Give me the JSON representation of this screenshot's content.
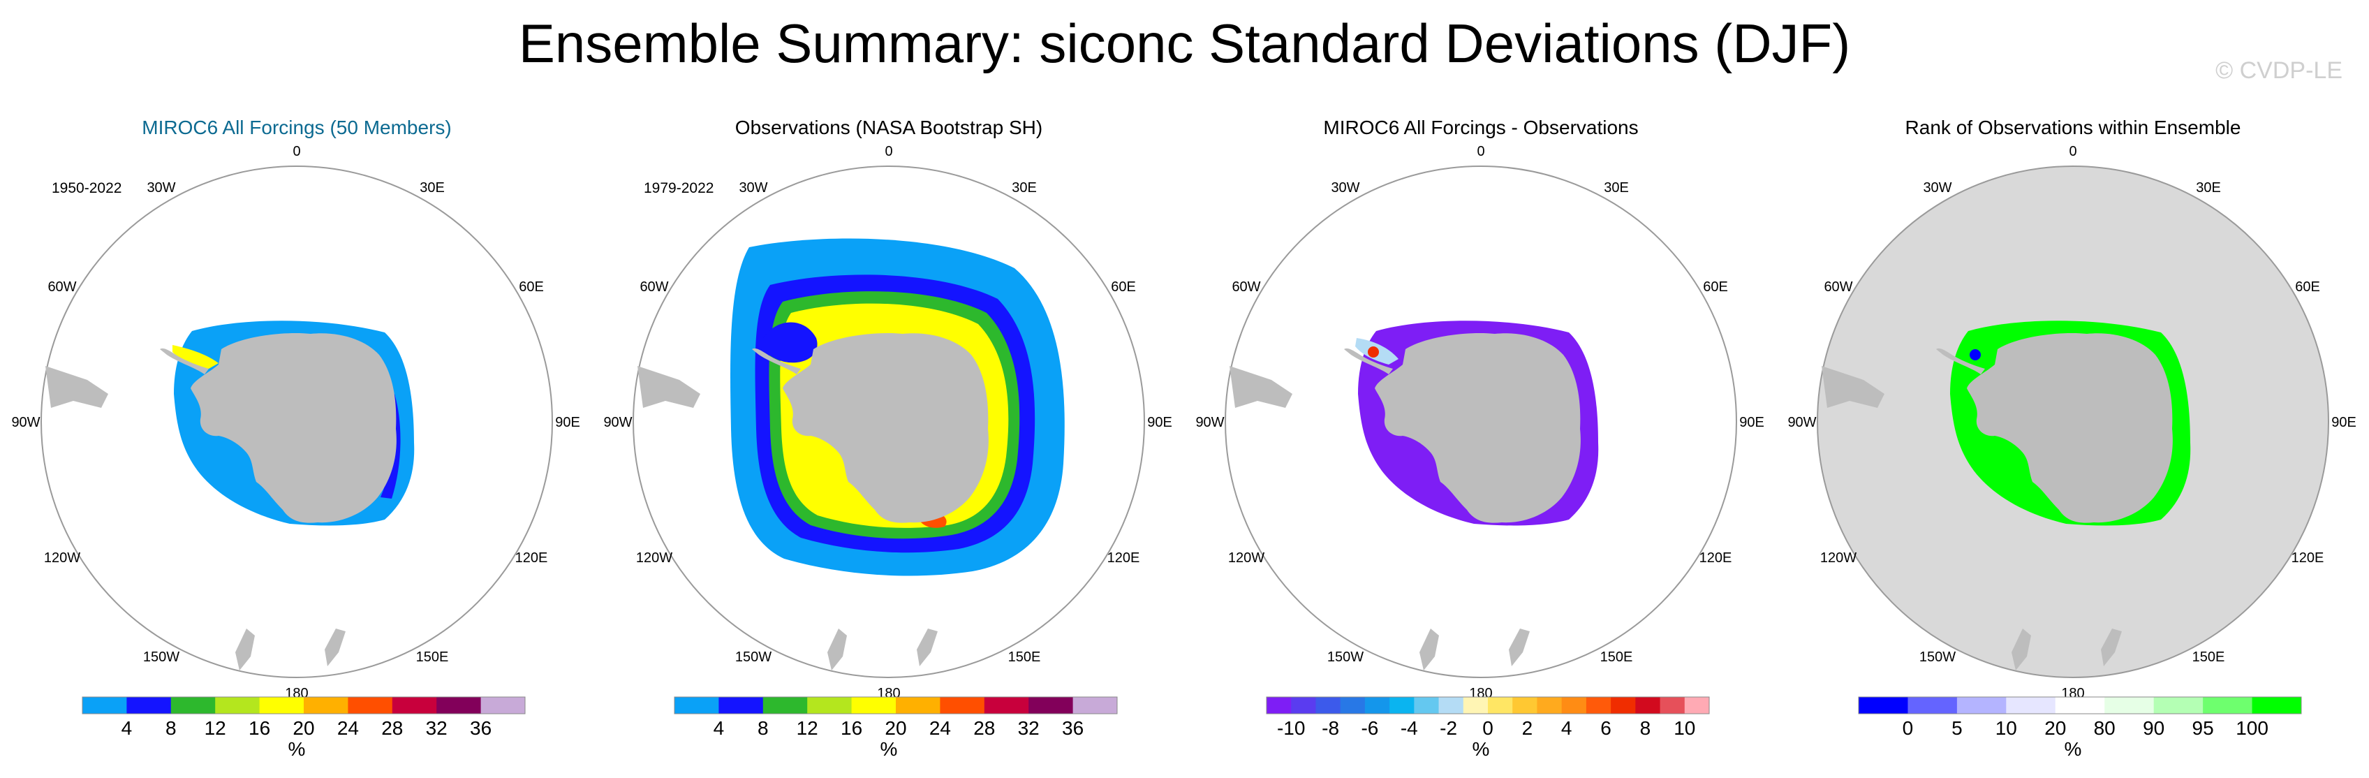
{
  "title": "Ensemble Summary: siconc Standard Deviations (DJF)",
  "watermark": "© CVDP-LE",
  "colors": {
    "land": "#bdbdbd",
    "ocean_rank": "#d9d9d9",
    "title_blue": "#0c6a91",
    "title_black": "#000000"
  },
  "longitude_labels": [
    "0",
    "30E",
    "60E",
    "90E",
    "120E",
    "150E",
    "180",
    "150W",
    "120W",
    "90W",
    "60W",
    "30W"
  ],
  "chart_data": [
    {
      "type": "heatmap",
      "title": "MIROC6 All Forcings (50 Members)",
      "title_color": "#0c6a91",
      "period": "1950-2022",
      "projection": "south polar stereographic",
      "colorbar": {
        "unit": "%",
        "colors": [
          "#0aa1f7",
          "#1414ff",
          "#2db82d",
          "#b4e61e",
          "#ffff00",
          "#ffb000",
          "#ff4f00",
          "#c8003c",
          "#82005a",
          "#c8aad8"
        ],
        "tick_labels": [
          "4",
          "8",
          "12",
          "16",
          "20",
          "24",
          "28",
          "32",
          "36"
        ]
      }
    },
    {
      "type": "heatmap",
      "title": "Observations (NASA Bootstrap SH)",
      "title_color": "#000000",
      "period": "1979-2022",
      "projection": "south polar stereographic",
      "colorbar": {
        "unit": "%",
        "colors": [
          "#0aa1f7",
          "#1414ff",
          "#2db82d",
          "#b4e61e",
          "#ffff00",
          "#ffb000",
          "#ff4f00",
          "#c8003c",
          "#82005a",
          "#c8aad8"
        ],
        "tick_labels": [
          "4",
          "8",
          "12",
          "16",
          "20",
          "24",
          "28",
          "32",
          "36"
        ]
      }
    },
    {
      "type": "heatmap",
      "title": "MIROC6 All Forcings - Observations",
      "title_color": "#000000",
      "period": "",
      "projection": "south polar stereographic",
      "colorbar": {
        "unit": "%",
        "colors": [
          "#7e1ef5",
          "#5a3cf0",
          "#3c5aeb",
          "#2878e6",
          "#1496eb",
          "#0ab4f0",
          "#64c8f0",
          "#b4dcf5",
          "#fff5b4",
          "#ffe664",
          "#ffc832",
          "#ffaa1e",
          "#ff8c14",
          "#ff5a0a",
          "#f02d00",
          "#d20a1e",
          "#e6505a",
          "#ffaab4"
        ],
        "tick_labels": [
          "-10",
          "-8",
          "-6",
          "-4",
          "-2",
          "0",
          "2",
          "4",
          "6",
          "8",
          "10"
        ]
      }
    },
    {
      "type": "heatmap",
      "title": "Rank of Observations within Ensemble",
      "title_color": "#000000",
      "period": "",
      "projection": "south polar stereographic",
      "colorbar": {
        "unit": "%",
        "colors": [
          "#0000ff",
          "#6464ff",
          "#b4b4ff",
          "#e6e6ff",
          "#ffffff",
          "#e6ffe6",
          "#b4ffb4",
          "#6eff6e",
          "#00ff00"
        ],
        "tick_labels": [
          "0",
          "5",
          "10",
          "20",
          "80",
          "90",
          "95",
          "100"
        ]
      }
    }
  ]
}
